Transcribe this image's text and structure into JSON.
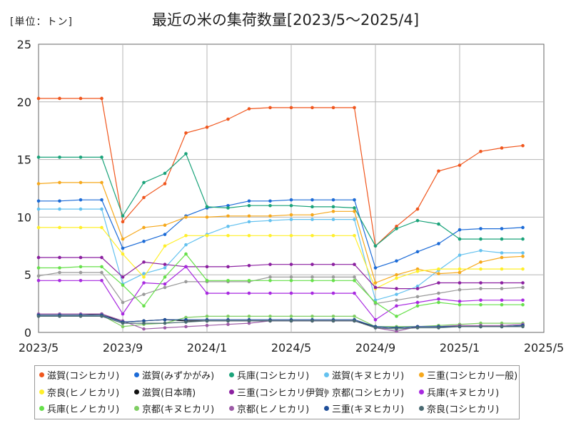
{
  "unit_label": "[単位：トン]",
  "chart_data": {
    "type": "line",
    "title": "最近の米の集荷数量[2023/5～2025/4]",
    "xlabel": "",
    "ylabel": "",
    "ylim": [
      0,
      25
    ],
    "yticks": [
      0,
      5,
      10,
      15,
      20,
      25
    ],
    "x_tick_labels": [
      "2023/5",
      "2023/9",
      "2024/1",
      "2024/5",
      "2024/9",
      "2025/1",
      "2025/5"
    ],
    "x_tick_months": [
      0,
      4,
      8,
      12,
      16,
      20,
      24
    ],
    "x_months": [
      0,
      1,
      2,
      3,
      4,
      5,
      6,
      7,
      8,
      9,
      10,
      11,
      12,
      13,
      14,
      15,
      16,
      17,
      18,
      19,
      20,
      21,
      22,
      23
    ],
    "grid": true,
    "legend_position": "bottom",
    "series": [
      {
        "name": "滋賀(コシヒカリ)",
        "color": "#f0561d",
        "values": [
          20.3,
          20.3,
          20.3,
          20.3,
          9.6,
          11.7,
          12.9,
          17.3,
          17.8,
          18.5,
          19.4,
          19.5,
          19.5,
          19.5,
          19.5,
          19.5,
          7.5,
          9.2,
          10.7,
          14.0,
          14.5,
          15.7,
          16.0,
          16.2
        ]
      },
      {
        "name": "滋賀(みずかがみ)",
        "color": "#1c6bd7",
        "values": [
          11.4,
          11.4,
          11.5,
          11.5,
          7.3,
          7.9,
          8.5,
          10.1,
          10.8,
          11.0,
          11.4,
          11.4,
          11.5,
          11.5,
          11.5,
          11.5,
          5.6,
          6.2,
          7.0,
          7.7,
          8.9,
          9.0,
          9.0,
          9.1
        ]
      },
      {
        "name": "兵庫(コシヒカリ)",
        "color": "#1aa37a",
        "values": [
          15.2,
          15.2,
          15.2,
          15.2,
          10.1,
          13.0,
          13.8,
          15.5,
          10.9,
          10.8,
          11.0,
          11.0,
          11.0,
          10.9,
          10.9,
          10.8,
          7.5,
          9.0,
          9.7,
          9.4,
          8.1,
          8.1,
          8.1,
          8.1
        ]
      },
      {
        "name": "滋賀(キヌヒカリ)",
        "color": "#63c1ef",
        "values": [
          10.7,
          10.7,
          10.7,
          10.7,
          4.2,
          5.1,
          5.6,
          7.6,
          8.5,
          9.2,
          9.6,
          9.7,
          9.8,
          9.8,
          9.8,
          9.8,
          2.8,
          3.3,
          4.0,
          5.4,
          6.7,
          7.1,
          6.9,
          6.9
        ]
      },
      {
        "name": "三重(コシヒカリ一般)",
        "color": "#f6a81c",
        "values": [
          12.9,
          13.0,
          13.0,
          13.0,
          8.1,
          9.1,
          9.3,
          10.0,
          10.0,
          10.1,
          10.1,
          10.1,
          10.2,
          10.2,
          10.5,
          10.5,
          4.3,
          5.0,
          5.5,
          5.1,
          5.2,
          6.1,
          6.5,
          6.6
        ]
      },
      {
        "name": "奈良(ヒノヒカリ)",
        "color": "#ffef2a",
        "values": [
          9.1,
          9.1,
          9.1,
          9.1,
          6.8,
          4.8,
          7.5,
          8.4,
          8.4,
          8.4,
          8.4,
          8.4,
          8.4,
          8.4,
          8.4,
          8.4,
          3.8,
          4.7,
          5.3,
          5.5,
          5.5,
          5.5,
          5.5,
          5.5
        ]
      },
      {
        "name": "滋賀(日本晴)",
        "color": "#111111",
        "values": [
          1.5,
          1.5,
          1.5,
          1.6,
          0.9,
          1.0,
          1.1,
          1.0,
          1.0,
          1.0,
          1.0,
          1.0,
          1.0,
          1.0,
          1.0,
          1.0,
          0.5,
          0.4,
          0.5,
          0.5,
          0.5,
          0.5,
          0.5,
          0.6
        ]
      },
      {
        "name": "三重(コシヒカリ伊賀)",
        "color": "#8b1fa0",
        "values": [
          6.5,
          6.5,
          6.5,
          6.5,
          4.8,
          6.1,
          5.9,
          5.7,
          5.7,
          5.7,
          5.8,
          5.9,
          5.9,
          5.9,
          5.9,
          5.9,
          3.9,
          3.8,
          3.8,
          4.3,
          4.3,
          4.3,
          4.3,
          4.3
        ]
      },
      {
        "name": "京都(コシヒカリ)",
        "color": "#9a9a9a",
        "values": [
          4.9,
          5.2,
          5.2,
          5.2,
          2.6,
          3.3,
          3.9,
          4.4,
          4.4,
          4.4,
          4.4,
          4.8,
          4.8,
          4.8,
          4.8,
          4.8,
          2.5,
          2.8,
          3.1,
          3.4,
          3.7,
          3.8,
          3.8,
          3.9
        ]
      },
      {
        "name": "兵庫(キヌヒカリ)",
        "color": "#a829e0",
        "values": [
          4.5,
          4.5,
          4.5,
          4.5,
          1.6,
          4.3,
          4.2,
          5.7,
          3.4,
          3.4,
          3.4,
          3.4,
          3.4,
          3.4,
          3.4,
          3.4,
          1.1,
          2.3,
          2.6,
          2.9,
          2.7,
          2.8,
          2.8,
          2.8
        ]
      },
      {
        "name": "兵庫(ヒノヒカリ)",
        "color": "#66e04a",
        "values": [
          5.6,
          5.6,
          5.7,
          5.7,
          4.1,
          2.3,
          4.8,
          6.8,
          4.5,
          4.5,
          4.5,
          4.5,
          4.5,
          4.5,
          4.5,
          4.5,
          2.6,
          1.4,
          2.3,
          2.6,
          2.4,
          2.4,
          2.4,
          2.4
        ]
      },
      {
        "name": "京都(キヌヒカリ)",
        "color": "#7fce62",
        "values": [
          1.5,
          1.5,
          1.5,
          1.5,
          0.5,
          0.7,
          0.8,
          1.3,
          1.4,
          1.4,
          1.4,
          1.4,
          1.4,
          1.4,
          1.4,
          1.4,
          0.5,
          0.5,
          0.5,
          0.6,
          0.7,
          0.8,
          0.8,
          0.8
        ]
      },
      {
        "name": "京都(ヒノヒカリ)",
        "color": "#9c5aa6",
        "values": [
          1.6,
          1.6,
          1.6,
          1.6,
          1.0,
          0.3,
          0.4,
          0.5,
          0.6,
          0.7,
          0.8,
          1.0,
          1.0,
          1.0,
          1.0,
          1.0,
          0.4,
          0.1,
          0.5,
          0.5,
          0.6,
          0.6,
          0.6,
          0.7
        ]
      },
      {
        "name": "三重(キヌヒカリ)",
        "color": "#1f4e99",
        "values": [
          1.5,
          1.5,
          1.5,
          1.5,
          0.9,
          1.0,
          1.1,
          1.1,
          1.1,
          1.1,
          1.1,
          1.1,
          1.1,
          1.1,
          1.1,
          1.1,
          0.5,
          0.4,
          0.5,
          0.5,
          0.5,
          0.5,
          0.5,
          0.6
        ]
      },
      {
        "name": "奈良(コシヒカリ)",
        "color": "#4a6a72",
        "values": [
          1.4,
          1.4,
          1.4,
          1.4,
          0.8,
          0.8,
          0.8,
          0.9,
          1.0,
          1.0,
          1.0,
          1.0,
          1.0,
          1.0,
          1.0,
          1.0,
          0.4,
          0.3,
          0.4,
          0.4,
          0.5,
          0.5,
          0.5,
          0.5
        ]
      }
    ]
  }
}
